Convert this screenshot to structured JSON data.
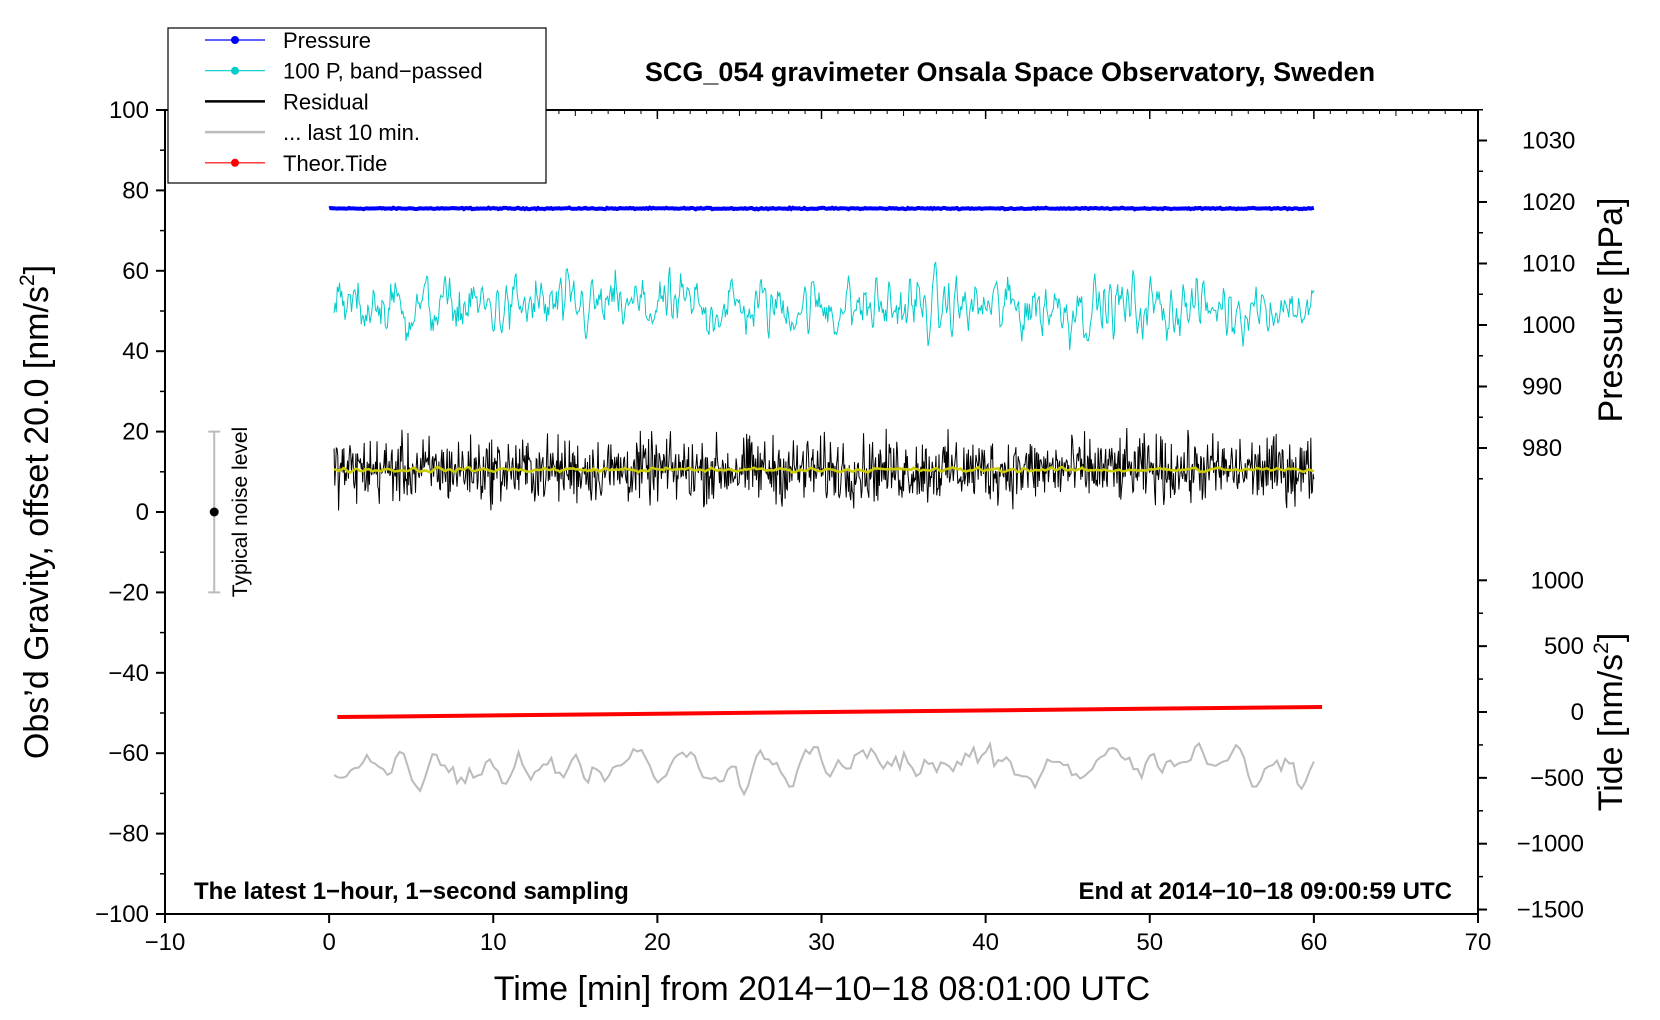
{
  "chart_data": {
    "type": "line",
    "title": "SCG_054 gravimeter Onsala Space Observatory, Sweden",
    "xlabel": "Time [min] from 2014−10−18 08:01:00 UTC",
    "ylabel_left": "Obs’d Gravity, offset 20.0 [nm/s²]",
    "ylabel_left_main": "Obs’d Gravity, offset 20.0 [nm/s",
    "ylabel_left_sup": "2",
    "ylabel_left_end": "]",
    "ylabel_pressure": "Pressure [hPa]",
    "ylabel_tide_main": "Tide [nm/s",
    "ylabel_tide_sup": "2",
    "ylabel_tide_end": "]",
    "xlim": [
      -10,
      70
    ],
    "ylim": [
      -100,
      100
    ],
    "x_ticks": [
      -10,
      0,
      10,
      20,
      30,
      40,
      50,
      60,
      70
    ],
    "x_tick_labels": [
      "−10",
      "0",
      "10",
      "20",
      "30",
      "40",
      "50",
      "60",
      "70"
    ],
    "y_ticks": [
      -100,
      -80,
      -60,
      -40,
      -20,
      0,
      20,
      40,
      60,
      80,
      100
    ],
    "y_tick_labels": [
      "−100",
      "−80",
      "−60",
      "−40",
      "−20",
      "0",
      "20",
      "40",
      "60",
      "80",
      "100"
    ],
    "pressure_ticks": [
      980,
      990,
      1000,
      1010,
      1020,
      1030
    ],
    "pressure_tick_labels": [
      "980",
      "990",
      "1000",
      "1010",
      "1020",
      "1030"
    ],
    "tide_ticks": [
      -1500,
      -1000,
      -500,
      0,
      500,
      1000
    ],
    "tide_tick_labels": [
      "−1500",
      "−1000",
      "−500",
      "0",
      "500",
      "1000"
    ],
    "grid": false,
    "legend_position": "top-left",
    "legend": [
      {
        "label": "Pressure",
        "color": "#0000ff",
        "marker": true
      },
      {
        "label": "100 P, band−passed",
        "color": "#00cccc",
        "marker": true
      },
      {
        "label": "Residual",
        "color": "#000000",
        "marker": false
      },
      {
        "label": "... last 10 min.",
        "color": "#bbbbbb",
        "marker": false
      },
      {
        "label": "Theor.Tide",
        "color": "#ff0000",
        "marker": true
      }
    ],
    "series": [
      {
        "name": "Pressure",
        "color": "#0000ff",
        "x_range": [
          0,
          60
        ],
        "pressure_hPa": 1019.4,
        "plotted_level": 75.5
      },
      {
        "name": "100 P, band−passed",
        "color": "#00cccc",
        "x_range": [
          0.3,
          60
        ],
        "center": 51,
        "amplitude": 7
      },
      {
        "name": "Residual",
        "color": "#000000",
        "x_range": [
          0.3,
          60
        ],
        "center": 10.5,
        "amplitude": 6.5
      },
      {
        "name": "... last 10 min.",
        "color": "#bbbbbb",
        "x_range": [
          0.3,
          60
        ],
        "center": -63,
        "amplitude": 4.5
      },
      {
        "name": "Theor.Tide",
        "color": "#ff0000",
        "x": [
          0.5,
          60.5
        ],
        "tide_nm_s2": [
          -30,
          40
        ],
        "plotted": [
          -51,
          -48.5
        ]
      },
      {
        "name": "Residual running mean",
        "color": "#cccc00",
        "x_range": [
          0.3,
          60
        ],
        "center": 10.5
      }
    ],
    "noise_bar": {
      "x": -7,
      "center": 0,
      "half_range": 20,
      "label": "Typical noise level",
      "color": "#bbbbbb"
    },
    "annotations": {
      "left": "The latest 1−hour, 1−second sampling",
      "right": "End at 2014−10−18 09:00:59 UTC"
    }
  }
}
